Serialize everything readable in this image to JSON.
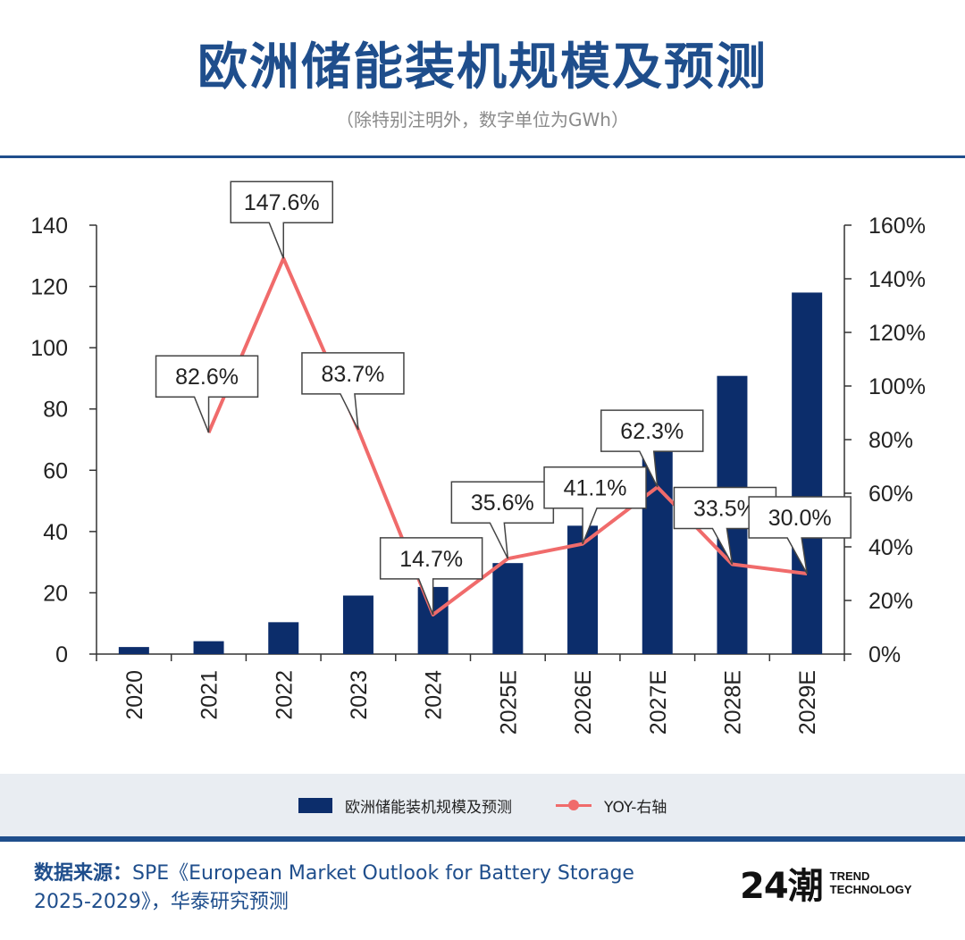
{
  "header": {
    "title": "欧洲储能装机规模及预测",
    "subtitle": "（除特别注明外，数字单位为GWh）"
  },
  "chart_data": {
    "type": "bar",
    "categories": [
      "2020",
      "2021",
      "2022",
      "2023",
      "2024",
      "2025E",
      "2026E",
      "2027E",
      "2028E",
      "2029E"
    ],
    "series": [
      {
        "name": "欧洲储能装机规模及预测",
        "type": "bar",
        "axis": "left",
        "values": [
          2.3,
          4.2,
          10.4,
          19.1,
          21.9,
          29.7,
          41.9,
          68.0,
          90.8,
          118.0
        ]
      },
      {
        "name": "YOY-右轴",
        "type": "line",
        "axis": "right",
        "values": [
          null,
          82.6,
          147.6,
          83.7,
          14.7,
          35.6,
          41.1,
          62.3,
          33.5,
          30.0
        ],
        "labels": [
          "",
          "82.6%",
          "147.6%",
          "83.7%",
          "14.7%",
          "35.6%",
          "41.1%",
          "62.3%",
          "33.5%",
          "30.0%"
        ]
      }
    ],
    "left_axis": {
      "ylim": [
        0,
        140
      ],
      "ticks": [
        "0",
        "20",
        "40",
        "60",
        "80",
        "100",
        "120",
        "140"
      ]
    },
    "right_axis": {
      "ylim": [
        0,
        160
      ],
      "ticks": [
        "0%",
        "20%",
        "40%",
        "60%",
        "80%",
        "100%",
        "120%",
        "140%",
        "160%"
      ]
    },
    "legend_position": "bottom",
    "grid": false,
    "colors": {
      "bar": "#0c2d6b",
      "line": "#f06b6b"
    }
  },
  "legend": {
    "bar_label": "欧洲储能装机规模及预测",
    "line_label": "YOY-右轴"
  },
  "footer": {
    "source_label": "数据来源：",
    "source_text": "SPE《European Market Outlook for Battery Storage 2025-2029》，华泰研究预测",
    "logo_mark": "24潮",
    "logo_line1": "TREND",
    "logo_line2": "TECHNOLOGY"
  },
  "colors": {
    "accent": "#1f4e8c",
    "band": "#e9edf2"
  }
}
